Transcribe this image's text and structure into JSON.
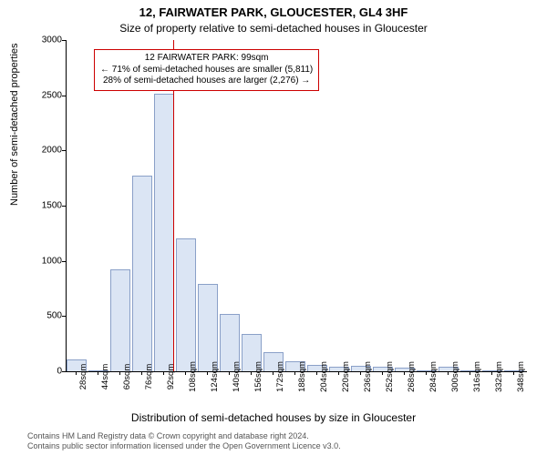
{
  "title_main": "12, FAIRWATER PARK, GLOUCESTER, GL4 3HF",
  "title_sub": "Size of property relative to semi-detached houses in Gloucester",
  "y_axis_label": "Number of semi-detached properties",
  "x_axis_label": "Distribution of semi-detached houses by size in Gloucester",
  "chart": {
    "type": "histogram",
    "ylim": [
      0,
      3000
    ],
    "yticks": [
      0,
      500,
      1000,
      1500,
      2000,
      2500,
      3000
    ],
    "x_start": 28,
    "x_step": 16,
    "x_bar_width": 14.5,
    "x_tick_count": 21,
    "x_tick_suffix": "sqm",
    "bar_values": [
      110,
      5,
      920,
      1770,
      2510,
      1200,
      790,
      520,
      340,
      170,
      90,
      55,
      40,
      50,
      40,
      35,
      5,
      45,
      5,
      5,
      5
    ],
    "bar_fill": "#dbe5f4",
    "bar_stroke": "#8aa0c8",
    "grid_color": "#e0e0e0",
    "marker": {
      "x_value": 99,
      "color": "#cc0000"
    },
    "background_color": "#ffffff",
    "axis_color": "#000000"
  },
  "annotation": {
    "line1": "12 FAIRWATER PARK: 99sqm",
    "line2": "← 71% of semi-detached houses are smaller (5,811)",
    "line3": "28% of semi-detached houses are larger (2,276) →",
    "border_color": "#cc0000"
  },
  "footer": {
    "line1": "Contains HM Land Registry data © Crown copyright and database right 2024.",
    "line2": "Contains public sector information licensed under the Open Government Licence v3.0."
  }
}
